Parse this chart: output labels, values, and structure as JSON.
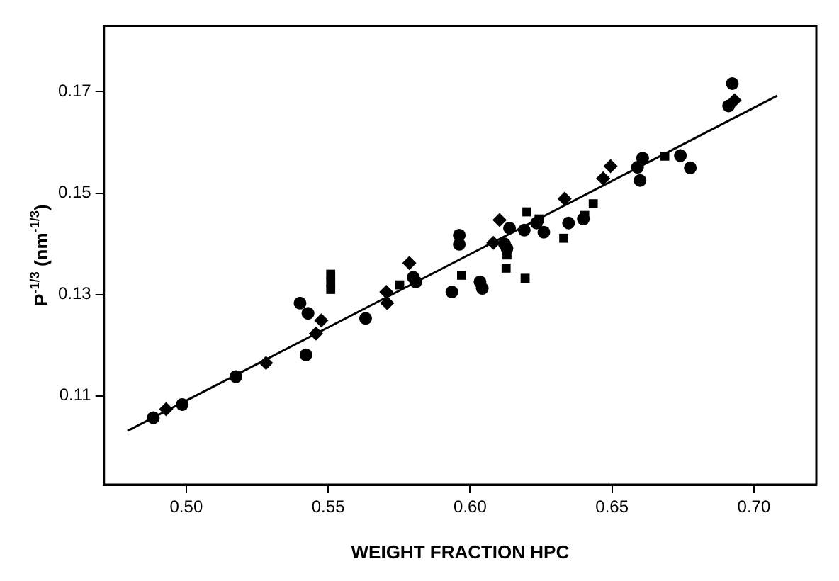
{
  "chart_data": {
    "type": "scatter",
    "xlabel": "WEIGHT FRACTION HPC",
    "ylabel": "P$^{-1/3}$ (nm$^{-1/3}$)",
    "xlim": [
      0.471,
      0.722
    ],
    "ylim": [
      0.0925,
      0.183
    ],
    "xticks": [
      {
        "value": 0.5,
        "label": "0.50"
      },
      {
        "value": 0.55,
        "label": "0.55"
      },
      {
        "value": 0.6,
        "label": "0.60"
      },
      {
        "value": 0.65,
        "label": "0.65"
      },
      {
        "value": 0.7,
        "label": "0.70"
      }
    ],
    "yticks": [
      0.11,
      0.13,
      0.15,
      0.17
    ],
    "grid": false,
    "legend": false,
    "series": [
      {
        "marker": "circle",
        "color": "#000000",
        "x": [
          0.4884,
          0.4986,
          0.5175,
          0.5422,
          0.5401,
          0.5429,
          0.5632,
          0.5809,
          0.58,
          0.5936,
          0.5962,
          0.5962,
          0.6035,
          0.6043,
          0.6121,
          0.613,
          0.6139,
          0.6191,
          0.6234,
          0.626,
          0.6347,
          0.6399,
          0.6924,
          0.6911,
          0.6776,
          0.6741,
          0.6608,
          0.659,
          0.6599
        ],
        "values": [
          0.1057,
          0.1083,
          0.1138,
          0.1181,
          0.1283,
          0.1263,
          0.1253,
          0.1325,
          0.1334,
          0.1305,
          0.1417,
          0.1399,
          0.1325,
          0.1312,
          0.14,
          0.1391,
          0.1431,
          0.1427,
          0.1441,
          0.1423,
          0.1441,
          0.1449,
          0.1716,
          0.1672,
          0.155,
          0.1574,
          0.1569,
          0.1551,
          0.1525
        ]
      },
      {
        "marker": "diamond",
        "color": "#000000",
        "x": [
          0.4929,
          0.5281,
          0.5457,
          0.5476,
          0.5708,
          0.5705,
          0.5786,
          0.6082,
          0.6104,
          0.6333,
          0.6932,
          0.6495,
          0.6469
        ],
        "values": [
          0.1074,
          0.1165,
          0.1223,
          0.1249,
          0.1283,
          0.1305,
          0.1362,
          0.1402,
          0.1447,
          0.1489,
          0.1683,
          0.1553,
          0.1529
        ]
      },
      {
        "marker": "square",
        "color": "#000000",
        "x": [
          0.5509,
          0.5509,
          0.5509,
          0.5752,
          0.597,
          0.613,
          0.6127,
          0.6194,
          0.62,
          0.6243,
          0.633,
          0.6434,
          0.6404,
          0.6686
        ],
        "values": [
          0.134,
          0.1325,
          0.131,
          0.1319,
          0.1338,
          0.1378,
          0.1352,
          0.1332,
          0.1463,
          0.1449,
          0.1411,
          0.1479,
          0.1456,
          0.1573
        ]
      },
      {
        "type": "line",
        "marker": "none",
        "line_style": "solid",
        "color": "#000000",
        "x": [
          0.4793,
          0.7082
        ],
        "values": [
          0.1031,
          0.1692
        ]
      }
    ]
  }
}
